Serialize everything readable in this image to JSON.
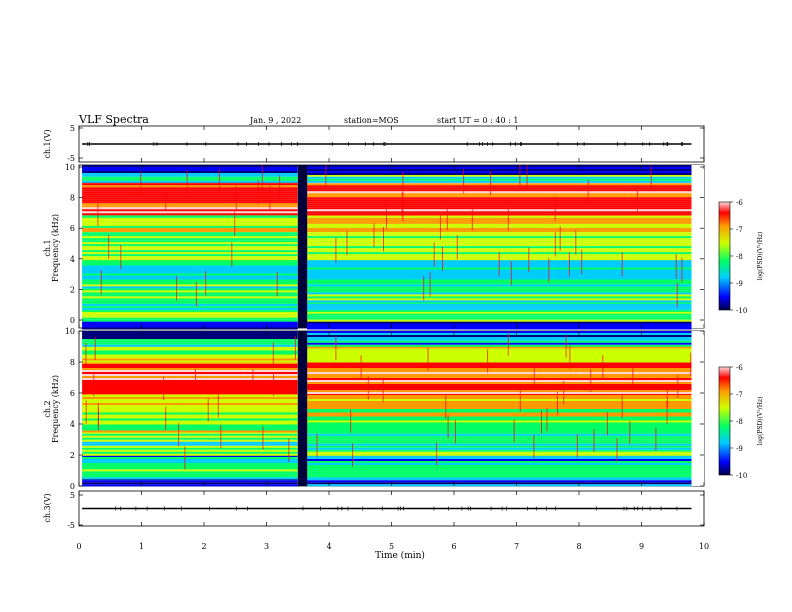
{
  "header": {
    "title": "VLF Spectra",
    "date": "Jan. 9 , 2022",
    "station": "station=MOS",
    "start": "start UT =   0 : 40 : 1"
  },
  "chart_data": [
    {
      "type": "line",
      "panel": "ch1-waveform",
      "ylabel": "ch.1(V)",
      "ylim": [
        -5,
        5
      ],
      "yticks": [
        "5",
        "-5"
      ],
      "baseline": 0
    },
    {
      "type": "heatmap",
      "panel": "ch1-spectrogram",
      "ylabel_channel": "ch.1",
      "ylabel": "Frequency (kHz)",
      "ylim": [
        0,
        10
      ],
      "yticks": [
        "0",
        "2",
        "4",
        "6",
        "8",
        "10"
      ],
      "xlim": [
        0,
        10
      ],
      "gap_minutes": [
        3.5,
        3.65
      ],
      "colorbar": {
        "label": "log(PSD)(V²/Hz)",
        "range": [
          -10,
          -6
        ],
        "ticks": [
          "-6",
          "-7",
          "-8",
          "-9",
          "-10"
        ]
      },
      "bands": [
        {
          "f": [
            0.0,
            0.4
          ],
          "level": -9.8
        },
        {
          "f": [
            0.4,
            1.0
          ],
          "level": -8.2
        },
        {
          "f": [
            1.0,
            1.6
          ],
          "level": -8.6
        },
        {
          "f": [
            1.6,
            2.8
          ],
          "level": -8.3
        },
        {
          "f": [
            2.8,
            4.2
          ],
          "level": -8.5
        },
        {
          "f": [
            4.2,
            6.0
          ],
          "level": -8.0
        },
        {
          "f": [
            6.0,
            7.0
          ],
          "level": -7.6
        },
        {
          "f": [
            7.0,
            9.0
          ],
          "level": -6.6
        },
        {
          "f": [
            9.0,
            9.4
          ],
          "level": -8.4
        },
        {
          "f": [
            9.4,
            10.0
          ],
          "level": -9.6
        }
      ]
    },
    {
      "type": "heatmap",
      "panel": "ch2-spectrogram",
      "ylabel_channel": "ch.2",
      "ylabel": "Frequency (kHz)",
      "ylim": [
        0,
        10
      ],
      "yticks": [
        "0",
        "2",
        "4",
        "6",
        "8",
        "10"
      ],
      "xlim": [
        0,
        10
      ],
      "gap_minutes": [
        3.5,
        3.65
      ],
      "colorbar": {
        "label": "log(PSD)(V²/Hz)",
        "range": [
          -10,
          -6
        ],
        "ticks": [
          "-6",
          "-7",
          "-8",
          "-9",
          "-10"
        ]
      },
      "bands": [
        {
          "f": [
            0.0,
            0.5
          ],
          "level": -9.6
        },
        {
          "f": [
            0.5,
            1.2
          ],
          "level": -8.4
        },
        {
          "f": [
            1.2,
            2.0
          ],
          "level": -8.7
        },
        {
          "f": [
            2.0,
            3.5
          ],
          "level": -8.3
        },
        {
          "f": [
            3.5,
            5.0
          ],
          "level": -7.8
        },
        {
          "f": [
            5.0,
            6.0
          ],
          "level": -7.3
        },
        {
          "f": [
            6.0,
            8.0
          ],
          "level": -6.6
        },
        {
          "f": [
            8.0,
            9.0
          ],
          "level": -7.8
        },
        {
          "f": [
            9.0,
            9.5
          ],
          "level": -8.8
        },
        {
          "f": [
            9.5,
            10.0
          ],
          "level": -9.5
        }
      ]
    },
    {
      "type": "line",
      "panel": "ch3-waveform",
      "ylabel": "ch.3(V)",
      "ylim": [
        -5,
        5
      ],
      "yticks": [
        "5",
        "-5"
      ],
      "baseline": 0
    }
  ],
  "xaxis": {
    "label": "Time (min)",
    "ticks": [
      "0",
      "1",
      "2",
      "3",
      "4",
      "5",
      "6",
      "7",
      "8",
      "9",
      "10"
    ]
  },
  "colors": {
    "cmap": [
      "#00007a",
      "#0000ff",
      "#00ccff",
      "#00ff66",
      "#ccff00",
      "#ff9900",
      "#ff0000",
      "#ffd6d6"
    ]
  }
}
